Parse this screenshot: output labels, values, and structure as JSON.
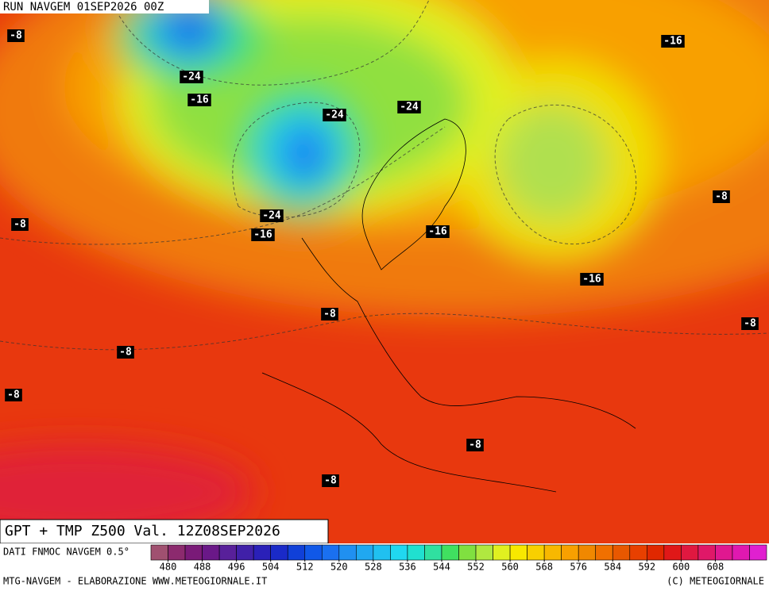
{
  "header": {
    "run": "RUN NAVGEM 01SEP2026 00Z"
  },
  "contour_labels": [
    "-8",
    "-24",
    "-16",
    "-24",
    "-24",
    "-16",
    "-8",
    "-8",
    "-24",
    "-16",
    "-16",
    "-16",
    "-8",
    "-8",
    "-8",
    "-8",
    "-8",
    "-8"
  ],
  "map_title": "GPT + TMP Z500 Val. 12Z08SEP2026",
  "source": "DATI FNMOC NAVGEM 0.5°",
  "colorbar": {
    "lim": [
      476,
      620
    ],
    "ticks": [
      480,
      488,
      496,
      504,
      512,
      520,
      528,
      536,
      544,
      552,
      560,
      568,
      576,
      584,
      592,
      600,
      608
    ],
    "colors": [
      "#a05070",
      "#8c2a6e",
      "#7a1a78",
      "#6a1888",
      "#58209a",
      "#4020a8",
      "#2a20b8",
      "#1a2ac8",
      "#1040d8",
      "#1058e8",
      "#1a70f0",
      "#2090f0",
      "#20a8f0",
      "#20c0f0",
      "#20d8f0",
      "#20e0d0",
      "#30e0a0",
      "#40e060",
      "#80e040",
      "#b0e840",
      "#e0f020",
      "#f8e800",
      "#f8d000",
      "#f8b800",
      "#f8a000",
      "#f08800",
      "#f07000",
      "#e85800",
      "#e84000",
      "#e02800",
      "#e01818",
      "#e01840",
      "#e01868",
      "#e01890",
      "#e018b0",
      "#e020d0"
    ]
  },
  "footer": {
    "left": "MTG-NAVGEM - ELABORAZIONE WWW.METEOGIORNALE.IT",
    "right": "(C) METEOGIORNALE"
  }
}
